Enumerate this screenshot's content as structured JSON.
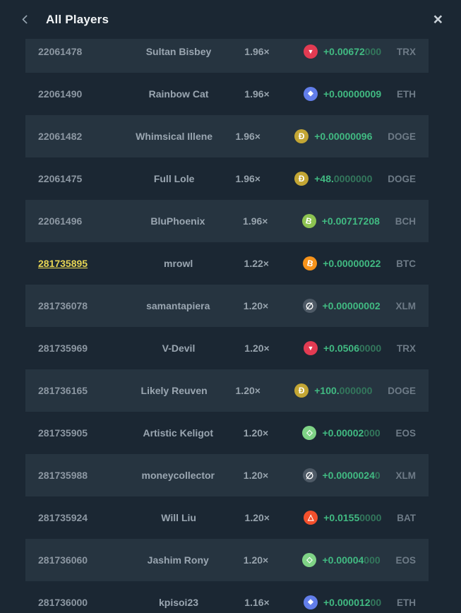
{
  "header": {
    "title": "All Players",
    "close_glyph": "×"
  },
  "colors": {
    "background": "#1b2733",
    "row_highlight": "#263440",
    "amount_green": "#41ba82",
    "amount_green_dim": "#33775c",
    "text_gray": "#8c97a2",
    "currency_gray": "#6e7b87",
    "self_id_yellow": "#e8d654"
  },
  "coins": {
    "TRX": {
      "icon_name": "tron-icon",
      "color": "#e23b52",
      "glyph": "▼"
    },
    "ETH": {
      "icon_name": "ethereum-icon",
      "color": "#627eea",
      "glyph": "◆"
    },
    "DOGE": {
      "icon_name": "dogecoin-icon",
      "color": "#c3a634",
      "glyph": "Đ"
    },
    "BCH": {
      "icon_name": "bitcoin-cash-icon",
      "color": "#8dc351",
      "glyph": "B"
    },
    "BTC": {
      "icon_name": "bitcoin-icon",
      "color": "#f7931a",
      "glyph": "B"
    },
    "XLM": {
      "icon_name": "stellar-icon",
      "color": "#4e5a66",
      "glyph": "∅"
    },
    "EOS": {
      "icon_name": "eos-icon",
      "color": "#7fd386",
      "glyph": "◇"
    },
    "BAT": {
      "icon_name": "bat-icon",
      "color": "#f4502c",
      "glyph": "△"
    }
  },
  "list": {
    "rows": [
      {
        "id": "22061478",
        "name": "Sultan Bisbey",
        "mult": "1.96×",
        "coin": "TRX",
        "bright": "+0.00672",
        "dim": "000",
        "cur": "TRX",
        "self": false
      },
      {
        "id": "22061490",
        "name": "Rainbow Cat",
        "mult": "1.96×",
        "coin": "ETH",
        "bright": "+0.00000009",
        "dim": "",
        "cur": "ETH",
        "self": false
      },
      {
        "id": "22061482",
        "name": "Whimsical Illene",
        "mult": "1.96×",
        "coin": "DOGE",
        "bright": "+0.00000096",
        "dim": "",
        "cur": "DOGE",
        "self": false
      },
      {
        "id": "22061475",
        "name": "Full Lole",
        "mult": "1.96×",
        "coin": "DOGE",
        "bright": "+48.",
        "dim": "0000000",
        "cur": "DOGE",
        "self": false
      },
      {
        "id": "22061496",
        "name": "BluPhoenix",
        "mult": "1.96×",
        "coin": "BCH",
        "bright": "+0.00717208",
        "dim": "",
        "cur": "BCH",
        "self": false
      },
      {
        "id": "281735895",
        "name": "mrowl",
        "mult": "1.22×",
        "coin": "BTC",
        "bright": "+0.00000022",
        "dim": "",
        "cur": "BTC",
        "self": true
      },
      {
        "id": "281736078",
        "name": "samantapiera",
        "mult": "1.20×",
        "coin": "XLM",
        "bright": "+0.00000002",
        "dim": "",
        "cur": "XLM",
        "self": false
      },
      {
        "id": "281735969",
        "name": "V-Devil",
        "mult": "1.20×",
        "coin": "TRX",
        "bright": "+0.0506",
        "dim": "0000",
        "cur": "TRX",
        "self": false
      },
      {
        "id": "281736165",
        "name": "Likely Reuven",
        "mult": "1.20×",
        "coin": "DOGE",
        "bright": "+100.",
        "dim": "000000",
        "cur": "DOGE",
        "self": false
      },
      {
        "id": "281735905",
        "name": "Artistic Keligot",
        "mult": "1.20×",
        "coin": "EOS",
        "bright": "+0.00002",
        "dim": "000",
        "cur": "EOS",
        "self": false
      },
      {
        "id": "281735988",
        "name": "moneycollector",
        "mult": "1.20×",
        "coin": "XLM",
        "bright": "+0.0000024",
        "dim": "0",
        "cur": "XLM",
        "self": false
      },
      {
        "id": "281735924",
        "name": "Will Liu",
        "mult": "1.20×",
        "coin": "BAT",
        "bright": "+0.0155",
        "dim": "0000",
        "cur": "BAT",
        "self": false
      },
      {
        "id": "281736060",
        "name": "Jashim Rony",
        "mult": "1.20×",
        "coin": "EOS",
        "bright": "+0.00004",
        "dim": "000",
        "cur": "EOS",
        "self": false
      },
      {
        "id": "281736000",
        "name": "kpisoi23",
        "mult": "1.16×",
        "coin": "ETH",
        "bright": "+0.000012",
        "dim": "00",
        "cur": "ETH",
        "self": false
      }
    ]
  }
}
